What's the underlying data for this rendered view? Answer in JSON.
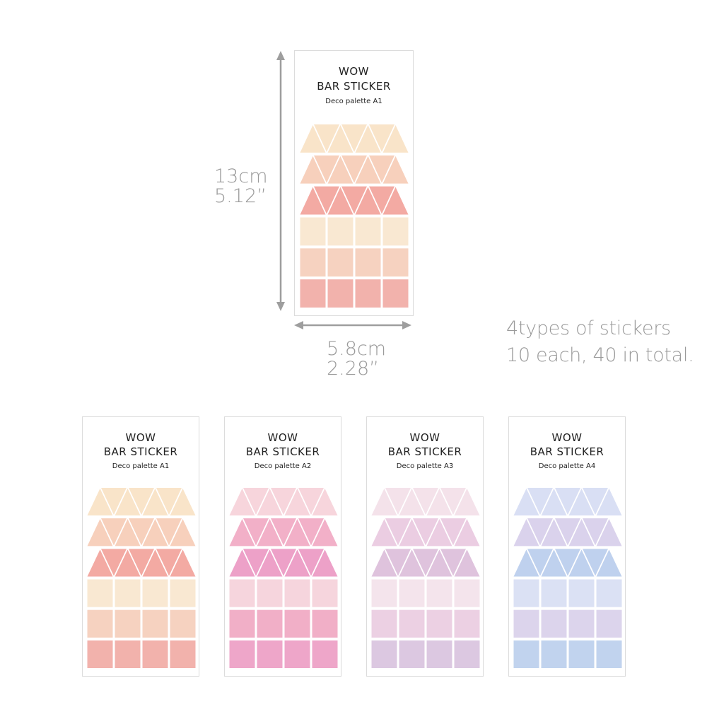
{
  "dimensions": {
    "height_cm": "13cm",
    "height_in": "5.12”",
    "width_cm": "5.8cm",
    "width_in": "2.28”"
  },
  "info": {
    "line1": "4types of stickers",
    "line2": "10 each, 40 in total."
  },
  "arrow_color": "#9e9e9e",
  "hero": {
    "title_line1": "WOW",
    "title_line2": "BAR STICKER",
    "subtitle": "Deco palette A1",
    "row_colors": [
      "#f9e4c9",
      "#f7d0bc",
      "#f3aaa3",
      "#f9e8d2",
      "#f6d2c0",
      "#f2b2ac"
    ]
  },
  "palettes": [
    {
      "title_line1": "WOW",
      "title_line2": "BAR STICKER",
      "subtitle": "Deco palette A1",
      "row_colors": [
        "#f9e4c9",
        "#f7d0bc",
        "#f3aaa3",
        "#f9e8d2",
        "#f6d2c0",
        "#f2b2ac"
      ]
    },
    {
      "title_line1": "WOW",
      "title_line2": "BAR STICKER",
      "subtitle": "Deco palette A2",
      "row_colors": [
        "#f7d5dc",
        "#f2b0c8",
        "#eda1c8",
        "#f6d5dd",
        "#f1afc7",
        "#eea6c9"
      ]
    },
    {
      "title_line1": "WOW",
      "title_line2": "BAR STICKER",
      "subtitle": "Deco palette A3",
      "row_colors": [
        "#f4e2ea",
        "#ebcde2",
        "#dfc3dd",
        "#f4e4ec",
        "#ecd0e3",
        "#dcc8e1"
      ]
    },
    {
      "title_line1": "WOW",
      "title_line2": "BAR STICKER",
      "subtitle": "Deco palette A4",
      "row_colors": [
        "#d9dff4",
        "#dad2ec",
        "#bfd1ee",
        "#dbe1f4",
        "#dcd4ec",
        "#c1d3ee"
      ]
    }
  ]
}
